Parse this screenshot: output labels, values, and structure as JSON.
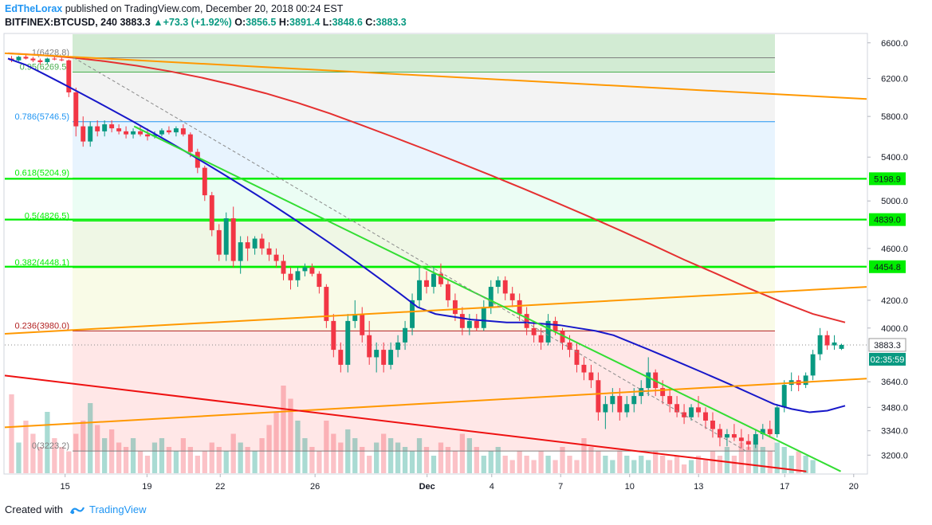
{
  "header": {
    "author": "EdTheLorax",
    "published": "published on TradingView.com, December 20, 2018 00:24 EST",
    "symbol": "BITFINEX:BTCUSD, 240",
    "last": "3883.3",
    "change": "+73.3 (+1.92%)",
    "o_label": "O:",
    "o": "3856.5",
    "h_label": "H:",
    "h": "3891.4",
    "l_label": "L:",
    "l": "3848.6",
    "c_label": "C:",
    "c": "3883.3"
  },
  "footer": {
    "created": "Created with",
    "brand": "TradingView"
  },
  "colors": {
    "up": "#089981",
    "down": "#f23645",
    "sma_fast": "#1717c9",
    "sma_slow": "#e53030",
    "trend_orange": "#ff9800",
    "trend_green": "#33dd33",
    "trend_red": "#ee1111",
    "fib_green": "#00ee00",
    "fib_red": "#b22222",
    "fib_blue": "#2979ff"
  },
  "chart_data": {
    "type": "candlestick",
    "symbol": "BITFINEX:BTCUSD",
    "interval": "240",
    "x_axis": {
      "ticks": [
        "15",
        "19",
        "22",
        "26",
        "Dec",
        "4",
        "7",
        "10",
        "13",
        "17",
        "20"
      ]
    },
    "y_axis": {
      "ticks": [
        "6600.0",
        "6200.0",
        "5800.0",
        "5400.0",
        "5000.0",
        "4600.0",
        "4200.0",
        "4000.0",
        "3640.0",
        "3480.0",
        "3340.0",
        "3200.0"
      ],
      "scale": "log",
      "range": [
        3100,
        6700
      ]
    },
    "price_markers": [
      {
        "value": "5198.9",
        "style": "green"
      },
      {
        "value": "4839.0",
        "style": "green"
      },
      {
        "value": "4454.8",
        "style": "green"
      },
      {
        "value": "3883.3",
        "style": "last"
      },
      {
        "value": "02:35:59",
        "style": "countdown"
      }
    ],
    "fib_levels": [
      {
        "label": "1(6428.8)",
        "value": 6428.8,
        "color": "#808080"
      },
      {
        "label": "0.95(6269.5)",
        "value": 6269.5,
        "color": "#4caf50"
      },
      {
        "label": "0.786(5746.5)",
        "value": 5746.5,
        "color": "#2196f3"
      },
      {
        "label": "0.618(5204.9)",
        "value": 5204.9,
        "color": "#00ee00"
      },
      {
        "label": "0.5(4826.5)",
        "value": 4826.5,
        "color": "#00ee00"
      },
      {
        "label": "0.382(4448.1)",
        "value": 4448.1,
        "color": "#00ee00"
      },
      {
        "label": "0.236(3980.0)",
        "value": 3980.0,
        "color": "#b22222"
      },
      {
        "label": "0(3223.2)",
        "value": 3223.2,
        "color": "#808080"
      }
    ],
    "candles": [
      [
        6420,
        6450,
        6380,
        6400
      ],
      [
        6400,
        6450,
        6390,
        6440
      ],
      [
        6440,
        6460,
        6410,
        6420
      ],
      [
        6420,
        6440,
        6380,
        6400
      ],
      [
        6400,
        6420,
        6350,
        6380
      ],
      [
        6380,
        6430,
        6360,
        6420
      ],
      [
        6420,
        6440,
        6400,
        6410
      ],
      [
        6410,
        6430,
        6390,
        6400
      ],
      [
        6400,
        6410,
        6000,
        6050
      ],
      [
        6050,
        6100,
        5600,
        5700
      ],
      [
        5700,
        5800,
        5500,
        5550
      ],
      [
        5550,
        5750,
        5500,
        5700
      ],
      [
        5700,
        5760,
        5600,
        5650
      ],
      [
        5650,
        5760,
        5600,
        5720
      ],
      [
        5720,
        5760,
        5640,
        5680
      ],
      [
        5680,
        5720,
        5620,
        5650
      ],
      [
        5650,
        5700,
        5580,
        5620
      ],
      [
        5620,
        5680,
        5580,
        5650
      ],
      [
        5650,
        5700,
        5600,
        5620
      ],
      [
        5620,
        5680,
        5560,
        5600
      ],
      [
        5600,
        5650,
        5580,
        5620
      ],
      [
        5620,
        5680,
        5600,
        5660
      ],
      [
        5660,
        5700,
        5620,
        5640
      ],
      [
        5640,
        5700,
        5600,
        5680
      ],
      [
        5680,
        5720,
        5600,
        5620
      ],
      [
        5620,
        5640,
        5400,
        5450
      ],
      [
        5450,
        5480,
        5250,
        5300
      ],
      [
        5300,
        5320,
        5000,
        5050
      ],
      [
        5050,
        5080,
        4700,
        4750
      ],
      [
        4750,
        4800,
        4500,
        4550
      ],
      [
        4550,
        4900,
        4500,
        4850
      ],
      [
        4850,
        4950,
        4450,
        4500
      ],
      [
        4500,
        4700,
        4400,
        4650
      ],
      [
        4650,
        4700,
        4500,
        4600
      ],
      [
        4600,
        4700,
        4550,
        4680
      ],
      [
        4680,
        4720,
        4550,
        4600
      ],
      [
        4600,
        4650,
        4500,
        4550
      ],
      [
        4550,
        4600,
        4450,
        4500
      ],
      [
        4500,
        4550,
        4350,
        4400
      ],
      [
        4400,
        4450,
        4280,
        4350
      ],
      [
        4350,
        4450,
        4300,
        4420
      ],
      [
        4420,
        4480,
        4380,
        4450
      ],
      [
        4450,
        4480,
        4380,
        4400
      ],
      [
        4400,
        4420,
        4250,
        4300
      ],
      [
        4300,
        4320,
        4000,
        4050
      ],
      [
        4050,
        4100,
        3800,
        3850
      ],
      [
        3850,
        3900,
        3700,
        3750
      ],
      [
        3750,
        4100,
        3700,
        4050
      ],
      [
        4050,
        4200,
        4000,
        4100
      ],
      [
        4100,
        4150,
        3900,
        3950
      ],
      [
        3950,
        4050,
        3750,
        3800
      ],
      [
        3800,
        3900,
        3700,
        3850
      ],
      [
        3850,
        3900,
        3700,
        3750
      ],
      [
        3750,
        3900,
        3720,
        3850
      ],
      [
        3850,
        3950,
        3800,
        3900
      ],
      [
        3900,
        4050,
        3850,
        4000
      ],
      [
        4000,
        4250,
        3950,
        4200
      ],
      [
        4200,
        4450,
        4150,
        4350
      ],
      [
        4350,
        4420,
        4250,
        4300
      ],
      [
        4300,
        4450,
        4250,
        4400
      ],
      [
        4400,
        4480,
        4300,
        4320
      ],
      [
        4320,
        4350,
        4150,
        4200
      ],
      [
        4200,
        4250,
        4050,
        4100
      ],
      [
        4100,
        4150,
        3950,
        4000
      ],
      [
        4000,
        4100,
        3950,
        4050
      ],
      [
        4050,
        4100,
        3980,
        4000
      ],
      [
        4000,
        4200,
        3980,
        4150
      ],
      [
        4150,
        4350,
        4100,
        4300
      ],
      [
        4300,
        4380,
        4250,
        4350
      ],
      [
        4350,
        4380,
        4200,
        4250
      ],
      [
        4250,
        4300,
        4150,
        4200
      ],
      [
        4200,
        4250,
        4050,
        4100
      ],
      [
        4100,
        4150,
        3950,
        4000
      ],
      [
        4000,
        4050,
        3900,
        3950
      ],
      [
        3950,
        4000,
        3850,
        3900
      ],
      [
        3900,
        4100,
        3880,
        4050
      ],
      [
        4050,
        4080,
        3950,
        3980
      ],
      [
        3980,
        4000,
        3850,
        3900
      ],
      [
        3900,
        3950,
        3800,
        3850
      ],
      [
        3850,
        3900,
        3700,
        3750
      ],
      [
        3750,
        3800,
        3650,
        3700
      ],
      [
        3700,
        3750,
        3600,
        3650
      ],
      [
        3650,
        3700,
        3400,
        3450
      ],
      [
        3450,
        3550,
        3350,
        3500
      ],
      [
        3500,
        3600,
        3450,
        3550
      ],
      [
        3550,
        3600,
        3400,
        3450
      ],
      [
        3450,
        3550,
        3420,
        3500
      ],
      [
        3500,
        3600,
        3450,
        3550
      ],
      [
        3550,
        3650,
        3500,
        3600
      ],
      [
        3600,
        3800,
        3550,
        3700
      ],
      [
        3700,
        3720,
        3550,
        3600
      ],
      [
        3600,
        3650,
        3500,
        3550
      ],
      [
        3550,
        3600,
        3450,
        3500
      ],
      [
        3500,
        3550,
        3420,
        3450
      ],
      [
        3450,
        3500,
        3380,
        3420
      ],
      [
        3420,
        3500,
        3400,
        3480
      ],
      [
        3480,
        3550,
        3420,
        3450
      ],
      [
        3450,
        3480,
        3350,
        3400
      ],
      [
        3400,
        3450,
        3300,
        3350
      ],
      [
        3350,
        3380,
        3250,
        3300
      ],
      [
        3300,
        3350,
        3250,
        3320
      ],
      [
        3320,
        3380,
        3280,
        3300
      ],
      [
        3300,
        3350,
        3240,
        3280
      ],
      [
        3280,
        3320,
        3230,
        3260
      ],
      [
        3260,
        3350,
        3240,
        3320
      ],
      [
        3320,
        3380,
        3290,
        3350
      ],
      [
        3350,
        3400,
        3300,
        3320
      ],
      [
        3320,
        3500,
        3300,
        3480
      ],
      [
        3480,
        3650,
        3450,
        3620
      ],
      [
        3620,
        3700,
        3580,
        3650
      ],
      [
        3650,
        3680,
        3580,
        3620
      ],
      [
        3620,
        3700,
        3600,
        3680
      ],
      [
        3680,
        3850,
        3650,
        3820
      ],
      [
        3820,
        4000,
        3780,
        3950
      ],
      [
        3950,
        3980,
        3850,
        3880
      ],
      [
        3880,
        3950,
        3850,
        3900
      ],
      [
        3856.5,
        3891.4,
        3848.6,
        3883.3
      ]
    ],
    "sma_fast": [
      6420,
      6350,
      6250,
      6150,
      6050,
      5950,
      5850,
      5750,
      5650,
      5550,
      5450,
      5350,
      5250,
      5150,
      5050,
      4950,
      4850,
      4750,
      4650,
      4550,
      4450,
      4350,
      4250,
      4150,
      4100,
      4080,
      4060,
      4050,
      4040,
      4040,
      4030,
      4020,
      4000,
      3980,
      3950,
      3900,
      3850,
      3800,
      3750,
      3700,
      3650,
      3600,
      3550,
      3500,
      3470,
      3450,
      3460,
      3490
    ],
    "sma_slow": [
      6480,
      6460,
      6430,
      6390,
      6340,
      6280,
      6210,
      6130,
      6040,
      5940,
      5830,
      5710,
      5590,
      5470,
      5350,
      5230,
      5110,
      4990,
      4870,
      4750,
      4630,
      4510,
      4400,
      4290,
      4190,
      4100,
      4040
    ],
    "trend_lines": [
      {
        "name": "orange-upper",
        "x1": 0,
        "y1": 6480,
        "x2": 1.0,
        "y2": 5980
      },
      {
        "name": "orange-middle",
        "x1": 0,
        "y1": 3960,
        "x2": 1.0,
        "y2": 4300
      },
      {
        "name": "orange-lower",
        "x1": 0,
        "y1": 3360,
        "x2": 1.0,
        "y2": 3660
      },
      {
        "name": "green-down",
        "x1": 0.15,
        "y1": 5700,
        "x2": 0.97,
        "y2": 3110
      },
      {
        "name": "red-down",
        "x1": 0,
        "y1": 3680,
        "x2": 0.93,
        "y2": 3110
      },
      {
        "name": "gray-dashed",
        "x1": 0.08,
        "y1": 6430,
        "x2": 0.86,
        "y2": 3223
      }
    ],
    "volume": [
      90,
      35,
      60,
      45,
      30,
      70,
      40,
      30,
      25,
      45,
      60,
      80,
      55,
      40,
      50,
      35,
      30,
      40,
      25,
      20,
      35,
      40,
      30,
      25,
      40,
      30,
      20,
      25,
      35,
      30,
      25,
      45,
      35,
      30,
      25,
      40,
      55,
      70,
      100,
      85,
      60,
      40,
      30,
      25,
      60,
      45,
      35,
      50,
      40,
      30,
      20,
      35,
      45,
      40,
      35,
      30,
      25,
      40,
      30,
      20,
      35,
      30,
      25,
      45,
      40,
      30,
      20,
      25,
      30,
      20,
      15,
      25,
      20,
      15,
      25,
      20,
      15,
      30,
      20,
      15,
      40,
      30,
      25,
      20,
      15,
      25,
      20,
      15,
      20,
      15,
      25,
      20,
      15,
      20,
      10,
      15,
      20,
      15,
      25,
      20,
      30,
      20,
      35,
      30,
      40,
      30,
      25,
      35,
      30,
      20,
      25,
      20,
      15
    ]
  }
}
